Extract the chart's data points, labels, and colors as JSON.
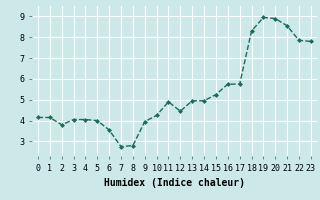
{
  "x": [
    0,
    1,
    2,
    3,
    4,
    5,
    6,
    7,
    8,
    9,
    10,
    11,
    12,
    13,
    14,
    15,
    16,
    17,
    18,
    19,
    20,
    21,
    22,
    23
  ],
  "y": [
    4.15,
    4.15,
    3.8,
    4.05,
    4.05,
    4.0,
    3.55,
    2.75,
    2.8,
    3.95,
    4.25,
    4.9,
    4.45,
    4.95,
    4.95,
    5.25,
    5.75,
    5.75,
    8.3,
    8.95,
    8.9,
    8.55,
    7.85,
    7.8
  ],
  "line_color": "#1a6b5a",
  "marker": "D",
  "markersize": 2.0,
  "linewidth": 1.0,
  "xlabel": "Humidex (Indice chaleur)",
  "xlim": [
    -0.5,
    23.5
  ],
  "ylim": [
    2.3,
    9.5
  ],
  "xticks": [
    0,
    1,
    2,
    3,
    4,
    5,
    6,
    7,
    8,
    9,
    10,
    11,
    12,
    13,
    14,
    15,
    16,
    17,
    18,
    19,
    20,
    21,
    22,
    23
  ],
  "yticks": [
    3,
    4,
    5,
    6,
    7,
    8,
    9
  ],
  "bg_color": "#cce8e8",
  "grid_color": "#ffffff",
  "xlabel_fontsize": 7.0,
  "tick_fontsize": 6.0,
  "linestyle": "--"
}
